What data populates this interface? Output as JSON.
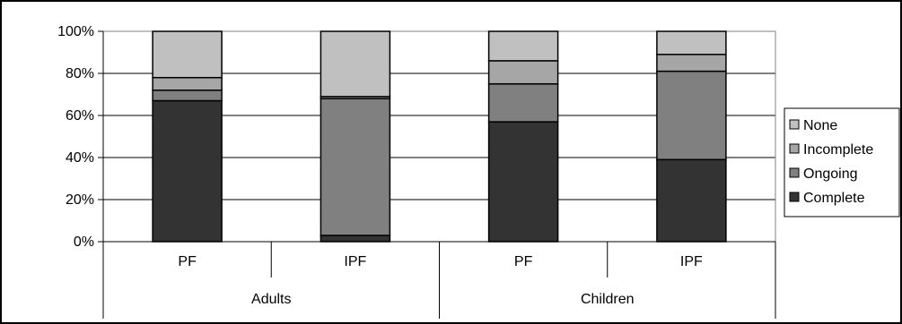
{
  "chart_data": {
    "type": "bar",
    "stacked": true,
    "percent": true,
    "title": "",
    "xlabel": "",
    "ylabel": "",
    "ylim": [
      0,
      100
    ],
    "yticks": [
      "0%",
      "20%",
      "40%",
      "60%",
      "80%",
      "100%"
    ],
    "grid": true,
    "legend_position": "right",
    "groups": [
      {
        "label": "Adults",
        "categories": [
          "PF",
          "IPF"
        ]
      },
      {
        "label": "Children",
        "categories": [
          "PF",
          "IPF"
        ]
      }
    ],
    "categories": [
      "PF",
      "IPF",
      "PF",
      "IPF"
    ],
    "series": [
      {
        "name": "Complete",
        "color": "#333333",
        "values": [
          67,
          3,
          57,
          39
        ]
      },
      {
        "name": "Ongoing",
        "color": "#808080",
        "values": [
          5,
          65,
          18,
          42
        ]
      },
      {
        "name": "Incomplete",
        "color": "#a6a6a6",
        "values": [
          6,
          1,
          11,
          8
        ]
      },
      {
        "name": "None",
        "color": "#c0c0c0",
        "values": [
          22,
          31,
          14,
          11
        ]
      }
    ]
  }
}
